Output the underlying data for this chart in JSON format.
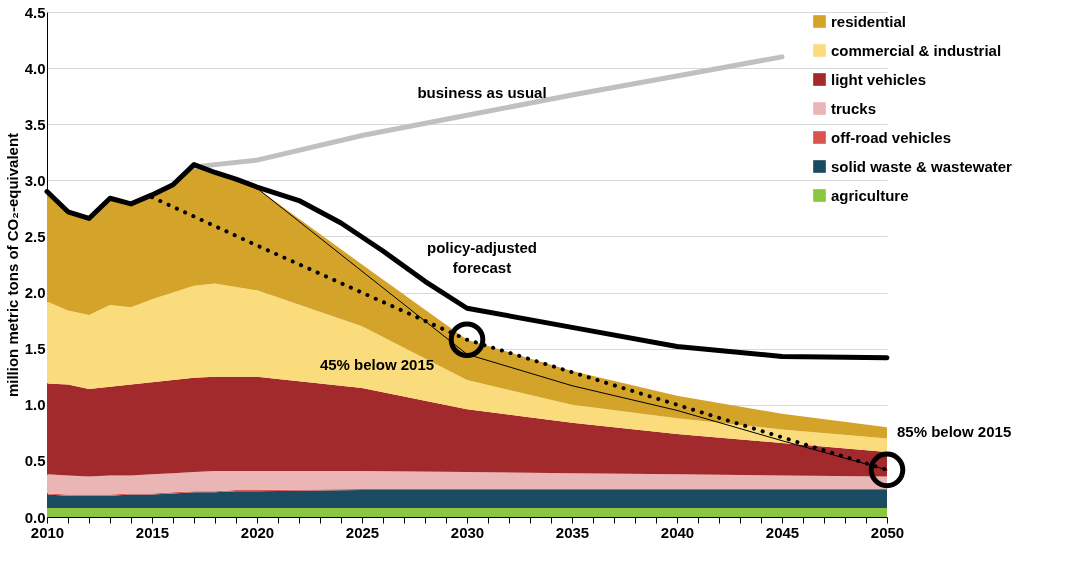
{
  "chart_data": {
    "type": "area",
    "stacked": true,
    "ylabel": "million metric tons of CO₂-equivalent",
    "x": [
      2010,
      2011,
      2012,
      2013,
      2014,
      2015,
      2016,
      2017,
      2018,
      2019,
      2020,
      2025,
      2030,
      2035,
      2040,
      2045,
      2050
    ],
    "series": [
      {
        "name": "agriculture",
        "color": "#8cc63f",
        "values": [
          0.08,
          0.08,
          0.08,
          0.08,
          0.08,
          0.08,
          0.08,
          0.08,
          0.08,
          0.08,
          0.08,
          0.08,
          0.08,
          0.08,
          0.08,
          0.08,
          0.08
        ]
      },
      {
        "name": "solid waste & wastewater",
        "color": "#1b4a63",
        "values": [
          0.12,
          0.11,
          0.11,
          0.11,
          0.12,
          0.12,
          0.13,
          0.14,
          0.14,
          0.15,
          0.15,
          0.16,
          0.16,
          0.16,
          0.16,
          0.16,
          0.16
        ]
      },
      {
        "name": "off-road vehicles",
        "color": "#d9534f",
        "values": [
          0.01,
          0.01,
          0.01,
          0.01,
          0.01,
          0.01,
          0.01,
          0.01,
          0.01,
          0.01,
          0.01,
          0.01,
          0.01,
          0.01,
          0.01,
          0.01,
          0.01
        ]
      },
      {
        "name": "trucks",
        "color": "#eab5b5",
        "values": [
          0.17,
          0.17,
          0.16,
          0.17,
          0.16,
          0.17,
          0.17,
          0.17,
          0.18,
          0.17,
          0.17,
          0.16,
          0.15,
          0.14,
          0.13,
          0.12,
          0.11
        ]
      },
      {
        "name": "light vehicles",
        "color": "#a32a2c",
        "values": [
          0.81,
          0.81,
          0.78,
          0.79,
          0.81,
          0.82,
          0.83,
          0.84,
          0.84,
          0.84,
          0.84,
          0.74,
          0.56,
          0.45,
          0.36,
          0.29,
          0.22
        ]
      },
      {
        "name": "commercial & industrial",
        "color": "#fadc7c",
        "values": [
          0.73,
          0.66,
          0.66,
          0.73,
          0.69,
          0.74,
          0.78,
          0.82,
          0.83,
          0.8,
          0.77,
          0.55,
          0.26,
          0.16,
          0.14,
          0.12,
          0.12
        ]
      },
      {
        "name": "residential",
        "color": "#d4a32a",
        "values": [
          0.98,
          0.88,
          0.86,
          0.94,
          0.91,
          0.92,
          0.95,
          1.06,
          0.97,
          0.95,
          0.91,
          0.55,
          0.36,
          0.3,
          0.2,
          0.14,
          0.1
        ]
      },
      {
        "type": "line",
        "name": "business as usual",
        "color": "#c0c0c0",
        "x": [
          2017,
          2020,
          2025,
          2030,
          2035,
          2040,
          2045
        ],
        "values": [
          3.12,
          3.18,
          3.4,
          3.58,
          3.76,
          3.93,
          4.1
        ]
      },
      {
        "type": "line",
        "name": "policy-adjusted forecast",
        "color": "#000000",
        "x": [
          2010,
          2011,
          2012,
          2013,
          2014,
          2015,
          2016,
          2017,
          2018,
          2019,
          2020,
          2022,
          2024,
          2026,
          2028,
          2030,
          2035,
          2040,
          2045,
          2050
        ],
        "values": [
          2.9,
          2.72,
          2.66,
          2.84,
          2.79,
          2.87,
          2.96,
          3.14,
          3.07,
          3.01,
          2.94,
          2.82,
          2.62,
          2.37,
          2.1,
          1.86,
          1.69,
          1.52,
          1.43,
          1.42
        ]
      },
      {
        "type": "line",
        "color": "#000000",
        "x": [
          2020,
          2030,
          2035,
          2040,
          2045,
          2050
        ],
        "values": [
          2.93,
          1.45,
          1.17,
          0.95,
          0.68,
          0.42
        ]
      },
      {
        "type": "line",
        "line_style": "dotted",
        "color": "#000000",
        "x": [
          2015,
          2020,
          2030,
          2050
        ],
        "values": [
          2.85,
          2.42,
          1.58,
          0.42
        ]
      },
      {
        "type": "scatter",
        "marker": "circle",
        "color": "#000000",
        "x": [
          2030,
          2050
        ],
        "values": [
          1.58,
          0.42
        ]
      }
    ],
    "annotations": [
      {
        "text": "45% below 2015",
        "x": 2030,
        "y": 1.58
      },
      {
        "text": "85% below 2015",
        "x": 2050,
        "y": 0.42
      }
    ],
    "xlim": [
      2010,
      2050
    ],
    "xticks": [
      2010,
      {
        "value": 2011,
        "label": null
      },
      {
        "value": 2012,
        "label": null
      },
      {
        "value": 2013,
        "label": null
      },
      {
        "value": 2014,
        "label": null
      },
      2015,
      {
        "value": 2016,
        "label": null
      },
      {
        "value": 2017,
        "label": null
      },
      {
        "value": 2018,
        "label": null
      },
      {
        "value": 2019,
        "label": null
      },
      2020,
      {
        "value": 2021,
        "label": null
      },
      {
        "value": 2022,
        "label": null
      },
      {
        "value": 2023,
        "label": null
      },
      {
        "value": 2024,
        "label": null
      },
      2025,
      {
        "value": 2026,
        "label": null
      },
      {
        "value": 2027,
        "label": null
      },
      {
        "value": 2028,
        "label": null
      },
      {
        "value": 2029,
        "label": null
      },
      2030,
      {
        "value": 2031,
        "label": null
      },
      {
        "value": 2032,
        "label": null
      },
      {
        "value": 2033,
        "label": null
      },
      {
        "value": 2034,
        "label": null
      },
      2035,
      {
        "value": 2036,
        "label": null
      },
      {
        "value": 2037,
        "label": null
      },
      {
        "value": 2038,
        "label": null
      },
      {
        "value": 2039,
        "label": null
      },
      2040,
      {
        "value": 2041,
        "label": null
      },
      {
        "value": 2042,
        "label": null
      },
      {
        "value": 2043,
        "label": null
      },
      {
        "value": 2044,
        "label": null
      },
      2045,
      {
        "value": 2046,
        "label": null
      },
      {
        "value": 2047,
        "label": null
      },
      {
        "value": 2048,
        "label": null
      },
      {
        "value": 2049,
        "label": null
      },
      2050
    ],
    "ylim": [
      0,
      4.5
    ],
    "yticks": [
      {
        "value": 0,
        "label": "0.0"
      },
      0.5,
      {
        "value": 1,
        "label": "1.0"
      },
      1.5,
      {
        "value": 2,
        "label": "2.0"
      },
      2.5,
      {
        "value": 3,
        "label": "3.0"
      },
      3.5,
      {
        "value": 4,
        "label": "4.0"
      },
      4.5
    ],
    "grid": "y",
    "legend": "top right"
  }
}
